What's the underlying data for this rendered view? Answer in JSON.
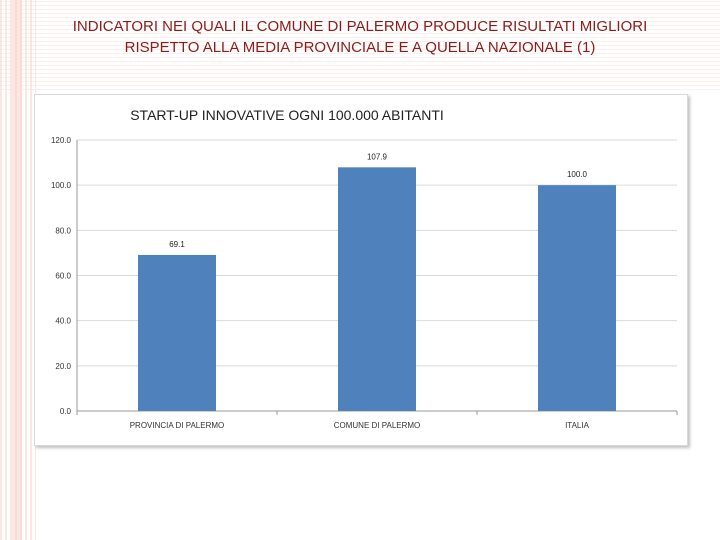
{
  "slide": {
    "title_line1": "INDICATORI NEI QUALI IL COMUNE DI PALERMO PRODUCE RISULTATI MIGLIORI",
    "title_line2": "RISPETTO ALLA MEDIA PROVINCIALE E A QUELLA NAZIONALE (1)"
  },
  "colors": {
    "bar": "#4f81bd",
    "title_text": "#8a1c1c",
    "grid": "#d9d9d9"
  },
  "chart_data": {
    "type": "bar",
    "title": "START-UP INNOVATIVE OGNI 100.000 ABITANTI",
    "categories": [
      "PROVINCIA DI PALERMO",
      "COMUNE DI PALERMO",
      "ITALIA"
    ],
    "values": [
      69.1,
      107.9,
      100.0
    ],
    "data_labels": [
      "69.1",
      "107.9",
      "100.0"
    ],
    "ylim": [
      0,
      120
    ],
    "yticks": [
      "0.0",
      "20.0",
      "40.0",
      "60.0",
      "80.0",
      "100.0",
      "120.0"
    ],
    "grid": true,
    "legend": "none",
    "xlabel": "",
    "ylabel": ""
  }
}
